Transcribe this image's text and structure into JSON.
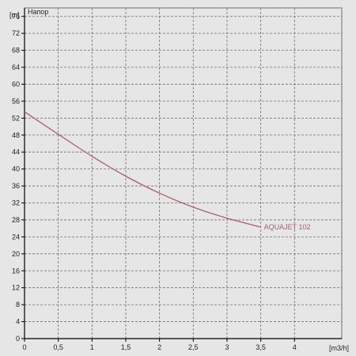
{
  "chart_data": {
    "type": "line",
    "title": "Напор",
    "xlabel": "[m3/h]",
    "ylabel": "[m]",
    "xlim": [
      0,
      4.7
    ],
    "ylim": [
      0,
      78
    ],
    "x_ticks": [
      "0",
      "0,5",
      "1",
      "1,5",
      "2",
      "2,5",
      "3",
      "3,5",
      "4"
    ],
    "y_ticks": [
      "0",
      "4",
      "8",
      "12",
      "16",
      "20",
      "24",
      "28",
      "32",
      "36",
      "40",
      "44",
      "48",
      "52",
      "56",
      "60",
      "64",
      "68",
      "72",
      "76"
    ],
    "grid": true,
    "series": [
      {
        "name": "AQUAJET 102",
        "color": "#a86070",
        "x": [
          0,
          0.5,
          1.0,
          1.5,
          2.0,
          2.5,
          3.0,
          3.5
        ],
        "y": [
          53.5,
          48.2,
          43.0,
          38.3,
          34.3,
          31.0,
          28.4,
          26.3
        ]
      }
    ]
  },
  "colors": {
    "background": "#e6e6e6",
    "grid": "#707070",
    "axis": "#000000"
  }
}
